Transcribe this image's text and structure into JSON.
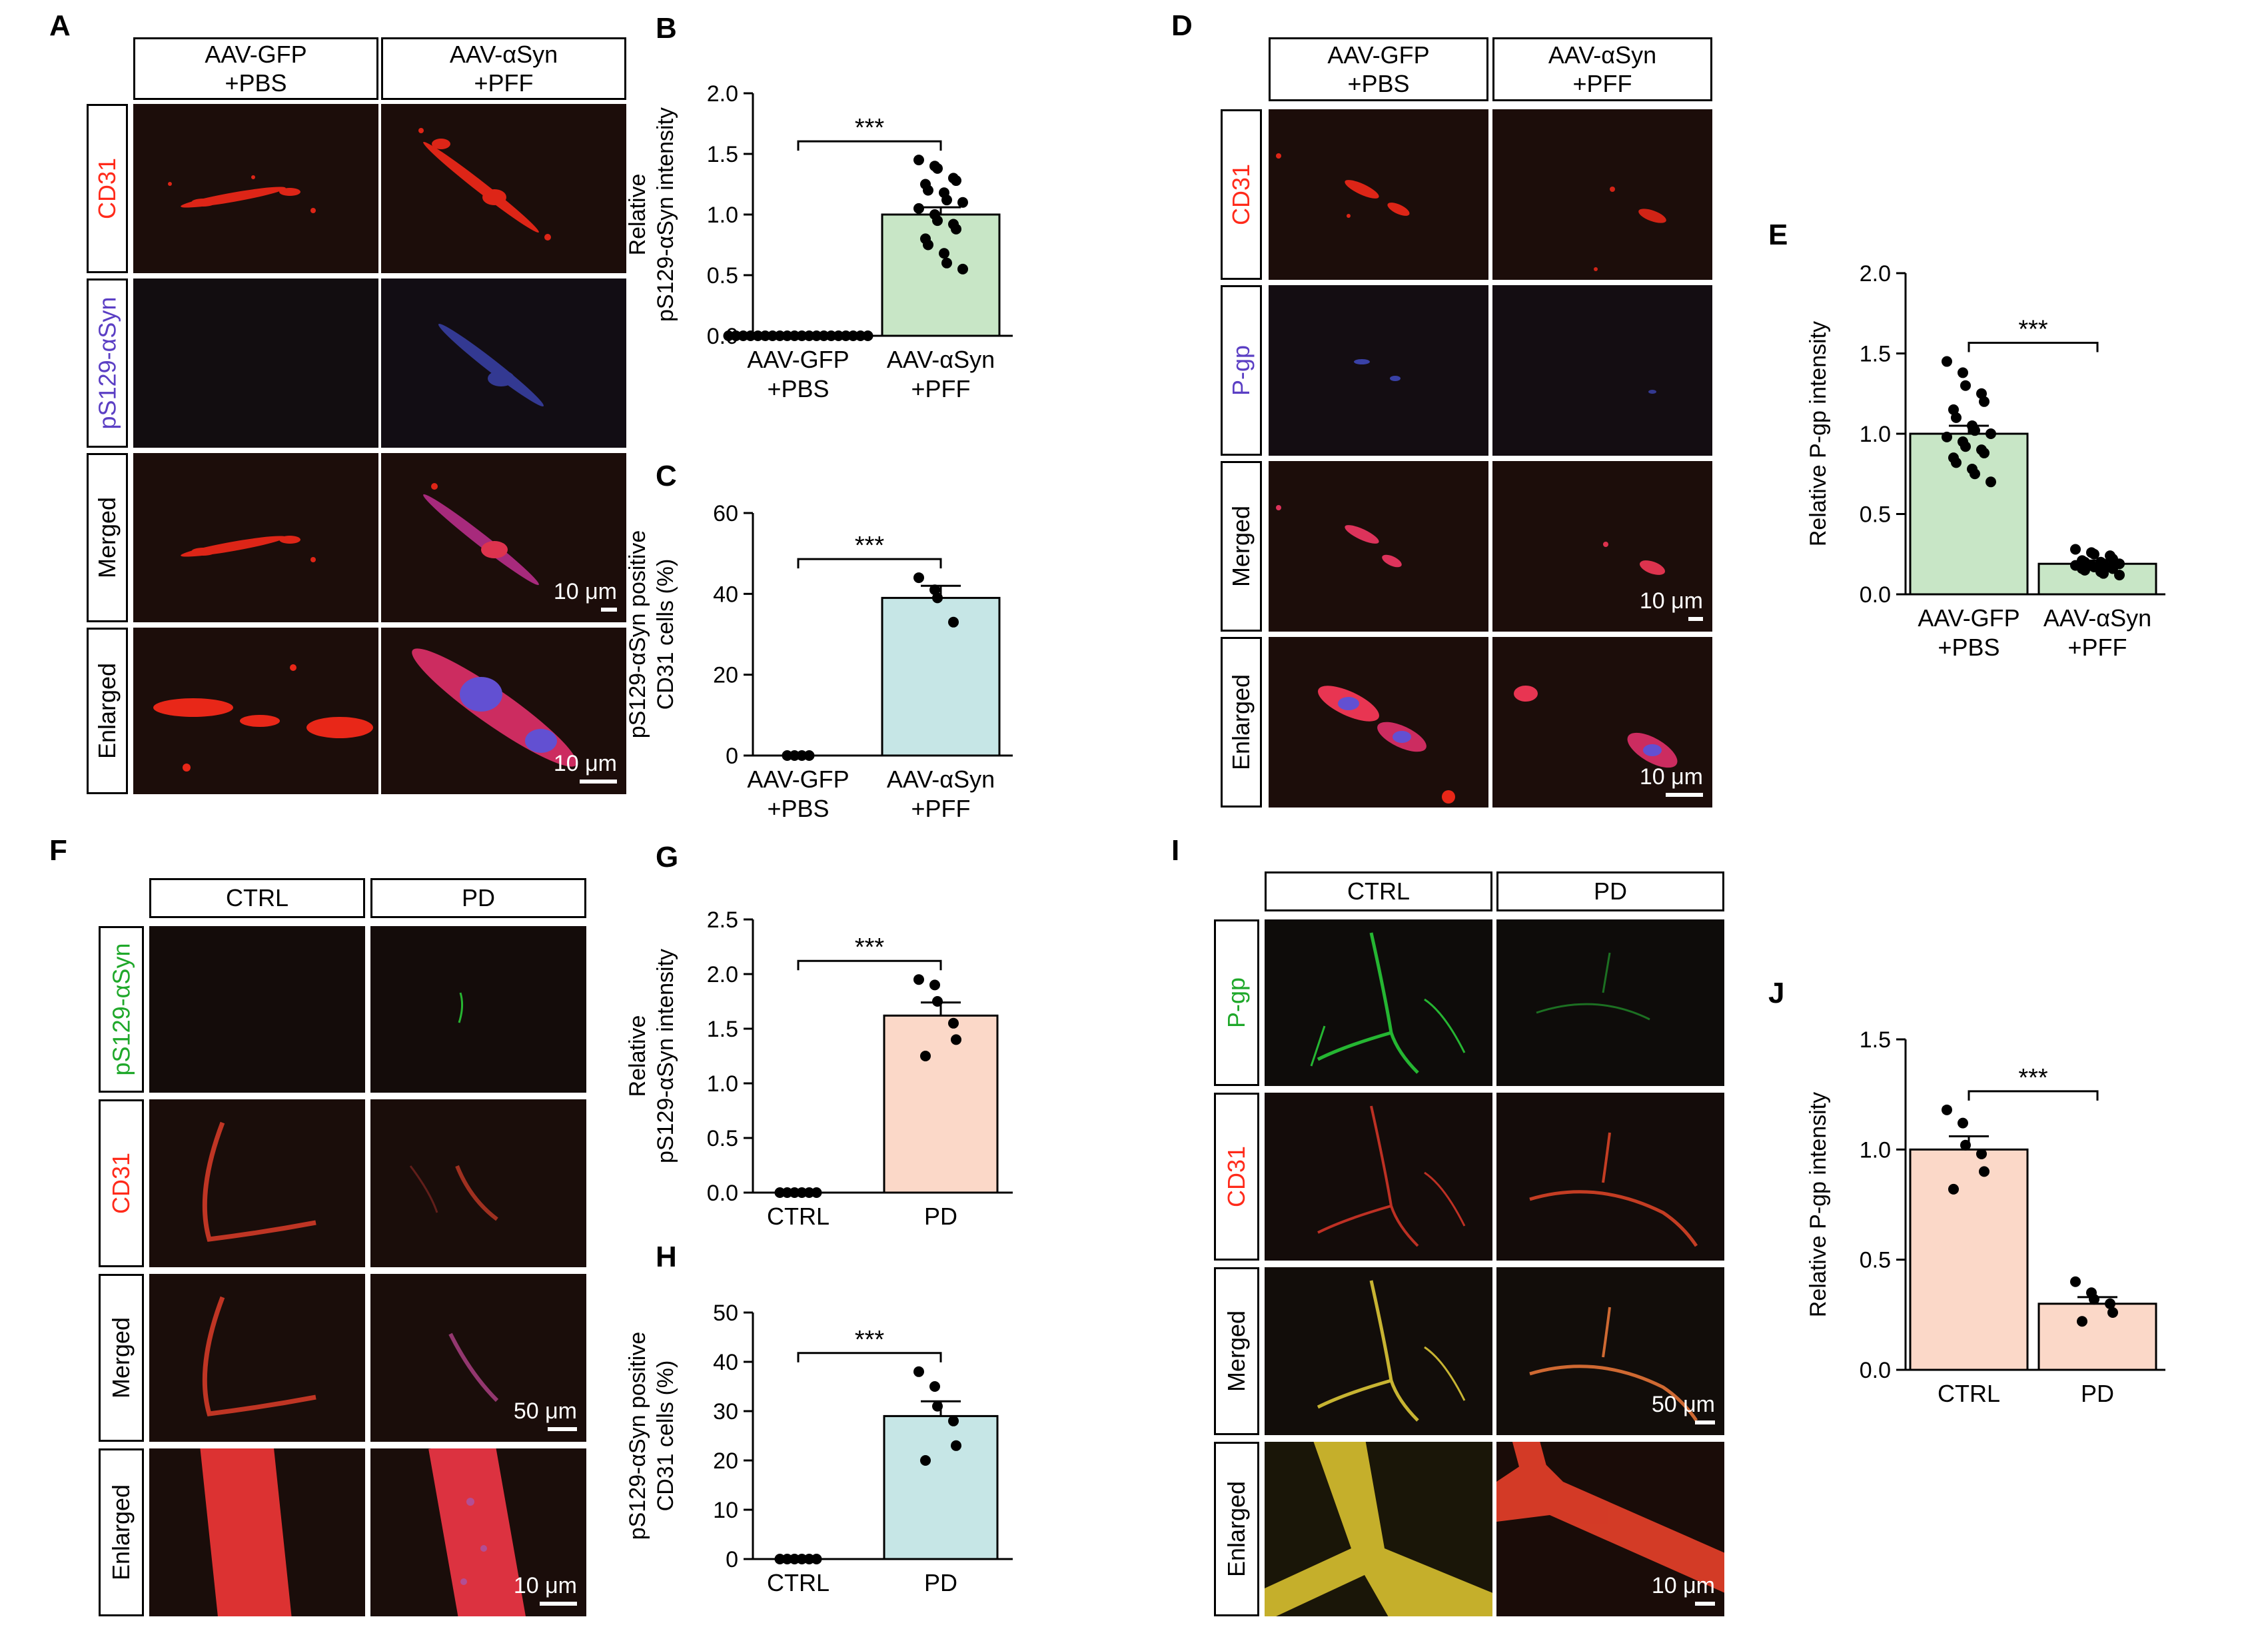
{
  "panels": {
    "A": "A",
    "B": "B",
    "C": "C",
    "D": "D",
    "E": "E",
    "F": "F",
    "G": "G",
    "H": "H",
    "I": "I",
    "J": "J"
  },
  "columns": {
    "mouse_1": "AAV-GFP\n+PBS",
    "mouse_2": "AAV-αSyn\n+PFF",
    "human_1": "CTRL",
    "human_2": "PD"
  },
  "rows": {
    "cd31": "CD31",
    "ps129": "pS129-αSyn",
    "pgp": "P-gp",
    "merged": "Merged",
    "enlarged": "Enlarged"
  },
  "scalebars": {
    "s10": "10 μm",
    "s50": "50 μm"
  },
  "colors": {
    "red": "#ff2a1a",
    "blue": "#4a57e6",
    "green": "#2ad43a",
    "yellow": "#e8d23a",
    "bar_green": "#c8e6c6",
    "bar_teal": "#c6e6e6",
    "bar_peach": "#fbd8c8",
    "background": "#1a0f0c"
  },
  "chart_data": [
    {
      "panel": "B",
      "type": "bar",
      "ylabel": [
        "Relative",
        "pS129-αSyn intensity"
      ],
      "ylim": [
        0,
        2.0
      ],
      "ticks": [
        0,
        0.5,
        1.0,
        1.5,
        2.0
      ],
      "tick_labels": [
        "0.0",
        "0.5",
        "1.0",
        "1.5",
        "2.0"
      ],
      "categories": [
        [
          "AAV-GFP",
          "+PBS"
        ],
        [
          "AAV-αSyn",
          "+PFF"
        ]
      ],
      "values": [
        0.0,
        1.0
      ],
      "sem": [
        0,
        0.06
      ],
      "bar_color": "#c8e6c6",
      "significance": "***",
      "points": [
        [
          0,
          0,
          0,
          0,
          0,
          0,
          0,
          0,
          0,
          0,
          0,
          0,
          0,
          0,
          0,
          0,
          0,
          0,
          0,
          0
        ],
        [
          1.45,
          1.4,
          1.38,
          1.3,
          1.28,
          1.25,
          1.2,
          1.18,
          1.12,
          1.1,
          1.05,
          1.0,
          0.95,
          0.92,
          0.88,
          0.8,
          0.75,
          0.68,
          0.6,
          0.55
        ]
      ]
    },
    {
      "panel": "C",
      "type": "bar",
      "ylabel": [
        "pS129-αSyn positive",
        "CD31 cells (%)"
      ],
      "ylim": [
        0,
        60
      ],
      "ticks": [
        0,
        20,
        40,
        60
      ],
      "tick_labels": [
        "0",
        "20",
        "40",
        "60"
      ],
      "categories": [
        [
          "AAV-GFP",
          "+PBS"
        ],
        [
          "AAV-αSyn",
          "+PFF"
        ]
      ],
      "values": [
        0,
        39
      ],
      "sem": [
        0,
        3
      ],
      "bar_color": "#c6e6e6",
      "significance": "***",
      "points": [
        [
          0,
          0,
          0,
          0
        ],
        [
          44,
          41,
          39,
          33
        ]
      ]
    },
    {
      "panel": "E",
      "type": "bar",
      "ylabel": [
        "Relative P-gp intensity"
      ],
      "ylim": [
        0,
        2.0
      ],
      "ticks": [
        0,
        0.5,
        1.0,
        1.5,
        2.0
      ],
      "tick_labels": [
        "0.0",
        "0.5",
        "1.0",
        "1.5",
        "2.0"
      ],
      "categories": [
        [
          "AAV-GFP",
          "+PBS"
        ],
        [
          "AAV-αSyn",
          "+PFF"
        ]
      ],
      "values": [
        1.0,
        0.19
      ],
      "sem": [
        0.05,
        0.02
      ],
      "bar_color": "#c8e6c6",
      "significance": "***",
      "points": [
        [
          1.45,
          1.38,
          1.3,
          1.25,
          1.2,
          1.15,
          1.1,
          1.05,
          1.02,
          1.0,
          0.98,
          0.95,
          0.92,
          0.9,
          0.88,
          0.85,
          0.82,
          0.78,
          0.75,
          0.7
        ],
        [
          0.28,
          0.26,
          0.25,
          0.24,
          0.22,
          0.21,
          0.2,
          0.2,
          0.19,
          0.19,
          0.18,
          0.18,
          0.17,
          0.17,
          0.16,
          0.16,
          0.15,
          0.14,
          0.13,
          0.12
        ]
      ]
    },
    {
      "panel": "G",
      "type": "bar",
      "ylabel": [
        "Relative",
        "pS129-αSyn intensity"
      ],
      "ylim": [
        0,
        2.5
      ],
      "ticks": [
        0,
        0.5,
        1.0,
        1.5,
        2.0,
        2.5
      ],
      "tick_labels": [
        "0.0",
        "0.5",
        "1.0",
        "1.5",
        "2.0",
        "2.5"
      ],
      "categories": [
        [
          "CTRL"
        ],
        [
          "PD"
        ]
      ],
      "values": [
        0.0,
        1.62
      ],
      "sem": [
        0,
        0.12
      ],
      "bar_color": "#fbd8c8",
      "significance": "***",
      "points": [
        [
          0,
          0,
          0,
          0,
          0,
          0
        ],
        [
          1.95,
          1.9,
          1.75,
          1.55,
          1.4,
          1.25
        ]
      ]
    },
    {
      "panel": "H",
      "type": "bar",
      "ylabel": [
        "pS129-αSyn positive",
        "CD31 cells (%)"
      ],
      "ylim": [
        0,
        50
      ],
      "ticks": [
        0,
        10,
        20,
        30,
        40,
        50
      ],
      "tick_labels": [
        "0",
        "10",
        "20",
        "30",
        "40",
        "50"
      ],
      "categories": [
        [
          "CTRL"
        ],
        [
          "PD"
        ]
      ],
      "values": [
        0,
        29
      ],
      "sem": [
        0,
        3
      ],
      "bar_color": "#c6e6e6",
      "significance": "***",
      "points": [
        [
          0,
          0,
          0,
          0,
          0,
          0
        ],
        [
          38,
          35,
          31,
          28,
          23,
          20
        ]
      ]
    },
    {
      "panel": "J",
      "type": "bar",
      "ylabel": [
        "Relative P-gp intensity"
      ],
      "ylim": [
        0,
        1.5
      ],
      "ticks": [
        0,
        0.5,
        1.0,
        1.5
      ],
      "tick_labels": [
        "0.0",
        "0.5",
        "1.0",
        "1.5"
      ],
      "categories": [
        [
          "CTRL"
        ],
        [
          "PD"
        ]
      ],
      "values": [
        1.0,
        0.3
      ],
      "sem": [
        0.06,
        0.03
      ],
      "bar_color": "#fbd8c8",
      "significance": "***",
      "points": [
        [
          1.18,
          1.12,
          1.02,
          0.98,
          0.9,
          0.82
        ],
        [
          0.4,
          0.35,
          0.32,
          0.3,
          0.26,
          0.22
        ]
      ]
    }
  ]
}
